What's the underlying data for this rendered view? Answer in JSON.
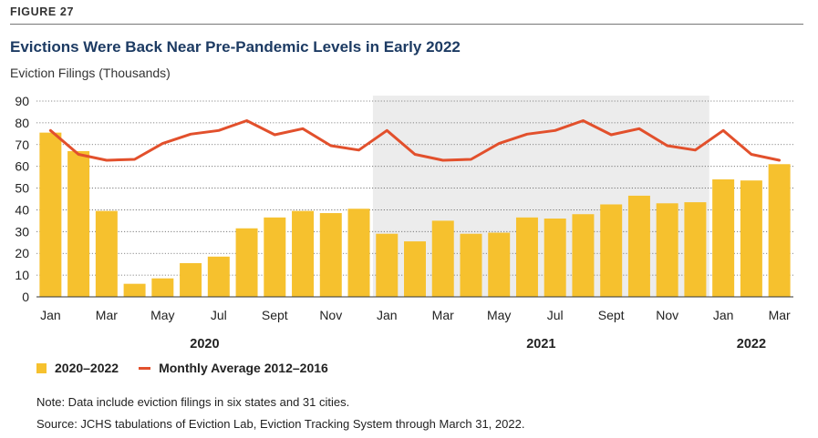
{
  "header": {
    "figure_label": "FIGURE 27",
    "title": "Evictions Were Back Near Pre-Pandemic Levels in Early 2022",
    "subtitle": "Eviction Filings (Thousands)"
  },
  "chart_data": {
    "type": "bar",
    "title": "Evictions Were Back Near Pre-Pandemic Levels in Early 2022",
    "ylabel": "Eviction Filings (Thousands)",
    "xlabel": "",
    "ylim": [
      0,
      90
    ],
    "yticks": [
      0,
      10,
      20,
      30,
      40,
      50,
      60,
      70,
      80,
      90
    ],
    "grid": "horizontal-dotted",
    "categories": [
      "Jan",
      "Feb",
      "Mar",
      "Apr",
      "May",
      "Jun",
      "Jul",
      "Aug",
      "Sept",
      "Oct",
      "Nov",
      "Dec",
      "Jan",
      "Feb",
      "Mar",
      "Apr",
      "May",
      "Jun",
      "Jul",
      "Aug",
      "Sept",
      "Oct",
      "Nov",
      "Dec",
      "Jan",
      "Feb",
      "Mar"
    ],
    "tick_labels": [
      {
        "index": 0,
        "label": "Jan"
      },
      {
        "index": 2,
        "label": "Mar"
      },
      {
        "index": 4,
        "label": "May"
      },
      {
        "index": 6,
        "label": "Jul"
      },
      {
        "index": 8,
        "label": "Sept"
      },
      {
        "index": 10,
        "label": "Nov"
      },
      {
        "index": 12,
        "label": "Jan"
      },
      {
        "index": 14,
        "label": "Mar"
      },
      {
        "index": 16,
        "label": "May"
      },
      {
        "index": 18,
        "label": "Jul"
      },
      {
        "index": 20,
        "label": "Sept"
      },
      {
        "index": 22,
        "label": "Nov"
      },
      {
        "index": 24,
        "label": "Jan"
      },
      {
        "index": 26,
        "label": "Mar"
      }
    ],
    "year_labels": [
      {
        "label": "2020",
        "start": 0,
        "end": 11
      },
      {
        "label": "2021",
        "start": 12,
        "end": 23
      },
      {
        "label": "2022",
        "start": 24,
        "end": 26
      }
    ],
    "shaded_range": {
      "start": 12,
      "end": 23
    },
    "series": [
      {
        "name": "2020–2022",
        "type": "bar",
        "color": "#f6c12e",
        "values": [
          75.5,
          67,
          39.5,
          6,
          8.5,
          15.5,
          18.5,
          31.5,
          36.5,
          39.5,
          38.5,
          40.5,
          29,
          25.5,
          35,
          29,
          29.5,
          36.5,
          36,
          38,
          42.5,
          46.5,
          43,
          43.5,
          54,
          53.5,
          61
        ]
      },
      {
        "name": "Monthly Average 2012–2016",
        "type": "line",
        "color": "#e2502c",
        "values": [
          76.5,
          65.5,
          62.8,
          63.2,
          70.5,
          74.8,
          76.5,
          81,
          74.5,
          77.3,
          69.5,
          67.5,
          76.5,
          65.5,
          62.8,
          63.2,
          70.5,
          74.8,
          76.5,
          81,
          74.5,
          77.3,
          69.5,
          67.5,
          76.5,
          65.5,
          62.8
        ]
      }
    ],
    "legend": {
      "position": "bottom-left"
    }
  },
  "legend": {
    "bars_label": "2020–2022",
    "line_label": "Monthly Average 2012–2016"
  },
  "footer": {
    "note": "Note: Data include eviction filings in six states and 31 cities.",
    "source": "Source: JCHS tabulations of Eviction Lab, Eviction Tracking System through March 31, 2022."
  }
}
